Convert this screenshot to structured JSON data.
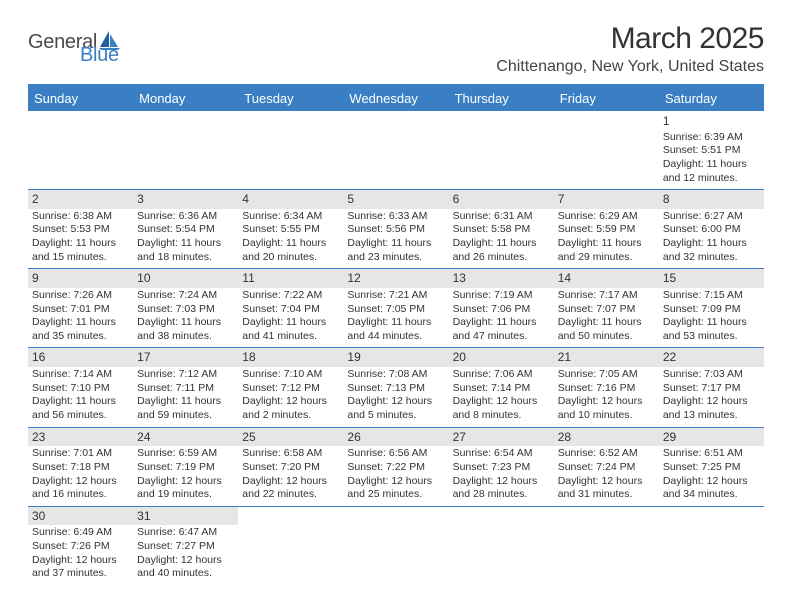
{
  "brand": {
    "general": "General",
    "blue": "Blue"
  },
  "title": "March 2025",
  "location": "Chittenango, New York, United States",
  "weekdays": [
    "Sunday",
    "Monday",
    "Tuesday",
    "Wednesday",
    "Thursday",
    "Friday",
    "Saturday"
  ],
  "style": {
    "header_bg": "#3a7fc4",
    "header_text": "#ffffff",
    "border_color": "#3a7fc4",
    "shaded_bg": "#e6e6e6",
    "body_text": "#333333",
    "cell_fontsize": 10.5,
    "header_fontsize": 13,
    "title_fontsize": 30,
    "location_fontsize": 16
  },
  "days": {
    "1": {
      "sunrise": "6:39 AM",
      "sunset": "5:51 PM",
      "daylight": "11 hours and 12 minutes."
    },
    "2": {
      "sunrise": "6:38 AM",
      "sunset": "5:53 PM",
      "daylight": "11 hours and 15 minutes."
    },
    "3": {
      "sunrise": "6:36 AM",
      "sunset": "5:54 PM",
      "daylight": "11 hours and 18 minutes."
    },
    "4": {
      "sunrise": "6:34 AM",
      "sunset": "5:55 PM",
      "daylight": "11 hours and 20 minutes."
    },
    "5": {
      "sunrise": "6:33 AM",
      "sunset": "5:56 PM",
      "daylight": "11 hours and 23 minutes."
    },
    "6": {
      "sunrise": "6:31 AM",
      "sunset": "5:58 PM",
      "daylight": "11 hours and 26 minutes."
    },
    "7": {
      "sunrise": "6:29 AM",
      "sunset": "5:59 PM",
      "daylight": "11 hours and 29 minutes."
    },
    "8": {
      "sunrise": "6:27 AM",
      "sunset": "6:00 PM",
      "daylight": "11 hours and 32 minutes."
    },
    "9": {
      "sunrise": "7:26 AM",
      "sunset": "7:01 PM",
      "daylight": "11 hours and 35 minutes."
    },
    "10": {
      "sunrise": "7:24 AM",
      "sunset": "7:03 PM",
      "daylight": "11 hours and 38 minutes."
    },
    "11": {
      "sunrise": "7:22 AM",
      "sunset": "7:04 PM",
      "daylight": "11 hours and 41 minutes."
    },
    "12": {
      "sunrise": "7:21 AM",
      "sunset": "7:05 PM",
      "daylight": "11 hours and 44 minutes."
    },
    "13": {
      "sunrise": "7:19 AM",
      "sunset": "7:06 PM",
      "daylight": "11 hours and 47 minutes."
    },
    "14": {
      "sunrise": "7:17 AM",
      "sunset": "7:07 PM",
      "daylight": "11 hours and 50 minutes."
    },
    "15": {
      "sunrise": "7:15 AM",
      "sunset": "7:09 PM",
      "daylight": "11 hours and 53 minutes."
    },
    "16": {
      "sunrise": "7:14 AM",
      "sunset": "7:10 PM",
      "daylight": "11 hours and 56 minutes."
    },
    "17": {
      "sunrise": "7:12 AM",
      "sunset": "7:11 PM",
      "daylight": "11 hours and 59 minutes."
    },
    "18": {
      "sunrise": "7:10 AM",
      "sunset": "7:12 PM",
      "daylight": "12 hours and 2 minutes."
    },
    "19": {
      "sunrise": "7:08 AM",
      "sunset": "7:13 PM",
      "daylight": "12 hours and 5 minutes."
    },
    "20": {
      "sunrise": "7:06 AM",
      "sunset": "7:14 PM",
      "daylight": "12 hours and 8 minutes."
    },
    "21": {
      "sunrise": "7:05 AM",
      "sunset": "7:16 PM",
      "daylight": "12 hours and 10 minutes."
    },
    "22": {
      "sunrise": "7:03 AM",
      "sunset": "7:17 PM",
      "daylight": "12 hours and 13 minutes."
    },
    "23": {
      "sunrise": "7:01 AM",
      "sunset": "7:18 PM",
      "daylight": "12 hours and 16 minutes."
    },
    "24": {
      "sunrise": "6:59 AM",
      "sunset": "7:19 PM",
      "daylight": "12 hours and 19 minutes."
    },
    "25": {
      "sunrise": "6:58 AM",
      "sunset": "7:20 PM",
      "daylight": "12 hours and 22 minutes."
    },
    "26": {
      "sunrise": "6:56 AM",
      "sunset": "7:22 PM",
      "daylight": "12 hours and 25 minutes."
    },
    "27": {
      "sunrise": "6:54 AM",
      "sunset": "7:23 PM",
      "daylight": "12 hours and 28 minutes."
    },
    "28": {
      "sunrise": "6:52 AM",
      "sunset": "7:24 PM",
      "daylight": "12 hours and 31 minutes."
    },
    "29": {
      "sunrise": "6:51 AM",
      "sunset": "7:25 PM",
      "daylight": "12 hours and 34 minutes."
    },
    "30": {
      "sunrise": "6:49 AM",
      "sunset": "7:26 PM",
      "daylight": "12 hours and 37 minutes."
    },
    "31": {
      "sunrise": "6:47 AM",
      "sunset": "7:27 PM",
      "daylight": "12 hours and 40 minutes."
    }
  },
  "labels": {
    "sunrise_prefix": "Sunrise: ",
    "sunset_prefix": "Sunset: ",
    "daylight_prefix": "Daylight: "
  },
  "grid": [
    [
      null,
      null,
      null,
      null,
      null,
      null,
      "1"
    ],
    [
      "2",
      "3",
      "4",
      "5",
      "6",
      "7",
      "8"
    ],
    [
      "9",
      "10",
      "11",
      "12",
      "13",
      "14",
      "15"
    ],
    [
      "16",
      "17",
      "18",
      "19",
      "20",
      "21",
      "22"
    ],
    [
      "23",
      "24",
      "25",
      "26",
      "27",
      "28",
      "29"
    ],
    [
      "30",
      "31",
      null,
      null,
      null,
      null,
      null
    ]
  ]
}
